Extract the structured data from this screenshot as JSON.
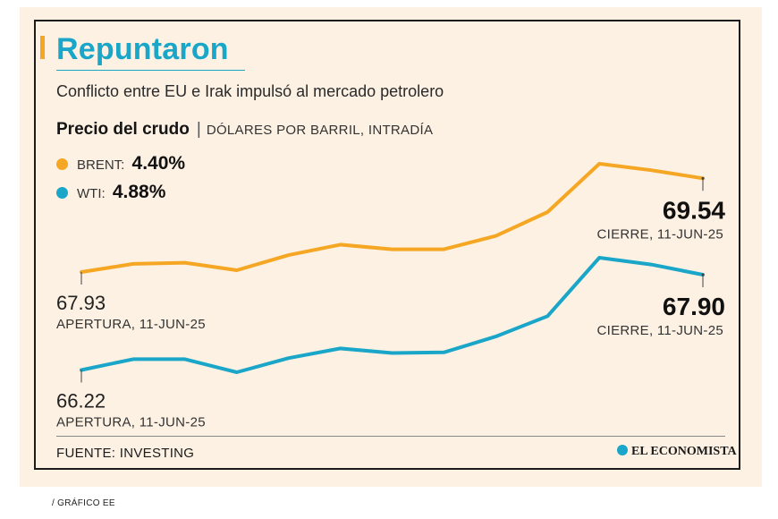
{
  "title": "Repuntaron",
  "subtitle": "Conflicto entre EU e Irak impulsó al mercado petrolero",
  "chart_heading": "Precio del crudo",
  "chart_unit": "DÓLARES POR BARRIL, INTRADÍA",
  "legend": [
    {
      "name": "BRENT:",
      "value": "4.40%",
      "color": "#f5a623"
    },
    {
      "name": "WTI:",
      "value": "4.88%",
      "color": "#1aa6c8"
    }
  ],
  "chart_data": {
    "type": "line",
    "series": [
      {
        "name": "BRENT",
        "color": "#f5a623",
        "values": [
          67.93,
          68.07,
          68.09,
          67.96,
          68.22,
          68.4,
          68.32,
          68.32,
          68.55,
          68.96,
          69.79,
          69.68,
          69.54
        ],
        "open_value": "67.93",
        "open_label": "APERTURA, 11-JUN-25",
        "close_value": "69.54",
        "close_label": "CIERRE, 11-JUN-25"
      },
      {
        "name": "WTI",
        "color": "#1aa6c8",
        "values": [
          66.22,
          66.41,
          66.41,
          66.18,
          66.43,
          66.6,
          66.52,
          66.53,
          66.81,
          67.17,
          68.2,
          68.08,
          67.9
        ],
        "open_value": "66.22",
        "open_label": "APERTURA, 11-JUN-25",
        "close_value": "67.90",
        "close_label": "CIERRE, 11-JUN-25"
      }
    ]
  },
  "source": "FUENTE: INVESTING",
  "brand": "EL ECONOMISTA",
  "credit": "/ GRÁFICO EE"
}
